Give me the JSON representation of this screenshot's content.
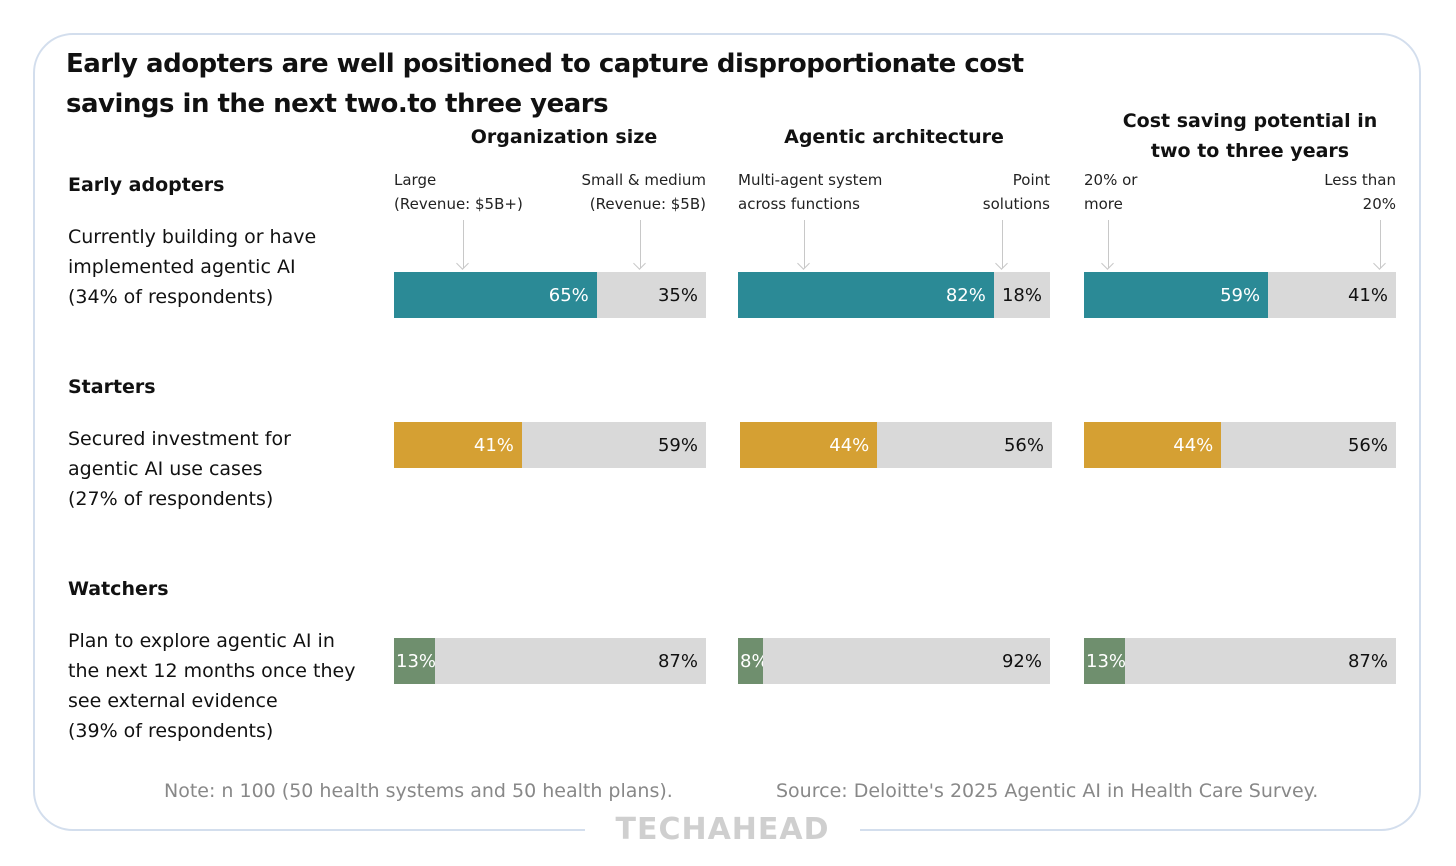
{
  "title": "Early adopters are well positioned to capture disproportionate cost savings in the next two.to three years",
  "chart_data": {
    "type": "bar",
    "orientation": "horizontal-stacked-100",
    "columns": [
      {
        "title": "Organization size",
        "left_label": "Large (Revenue: $5B+)",
        "right_label": "Small & medium (Revenue: $5B)"
      },
      {
        "title": "Agentic architecture",
        "left_label": "Multi-agent system across functions",
        "right_label": "Point solutions"
      },
      {
        "title": "Cost saving potential in two to three years",
        "left_label": "20% or more",
        "right_label": "Less than 20%"
      }
    ],
    "groups": [
      {
        "name": "Early adopters",
        "description": "Currently building or have implemented agentic AI (34% of respondents)",
        "color": "#2b8a96",
        "values": [
          [
            65,
            35
          ],
          [
            82,
            18
          ],
          [
            59,
            41
          ]
        ]
      },
      {
        "name": "Starters",
        "description": "Secured investment for agentic AI use cases (27% of respondents)",
        "color": "#d5a033",
        "values": [
          [
            41,
            59
          ],
          [
            44,
            56
          ],
          [
            44,
            56
          ]
        ]
      },
      {
        "name": "Watchers",
        "description": "Plan to explore agentic AI in the next 12 months once they see external evidence (39% of respondents)",
        "color": "#6f8f6e",
        "values": [
          [
            13,
            87
          ],
          [
            8,
            92
          ],
          [
            13,
            87
          ]
        ]
      }
    ],
    "rest_color": "#d9d9d9"
  },
  "labels": {
    "col1_left": [
      "Large",
      "(Revenue: $5B+)"
    ],
    "col1_right": [
      "Small & medium",
      "(Revenue: $5B)"
    ],
    "col2_left": [
      "Multi-agent system",
      "across functions"
    ],
    "col2_right": [
      "Point",
      "solutions"
    ],
    "col3_left": [
      "20% or",
      "more"
    ],
    "col3_right": [
      "Less than",
      "20%"
    ],
    "desc1": [
      "Currently building or have",
      "implemented agentic AI",
      "(34% of respondents)"
    ],
    "desc2": [
      "Secured investment for",
      "agentic AI use cases",
      "(27% of respondents)"
    ],
    "desc3": [
      "Plan to explore agentic AI in",
      "the next 12 months once they",
      "see external evidence",
      "(39% of respondents)"
    ],
    "col3_title": [
      "Cost saving potential in",
      "two to three years"
    ]
  },
  "footer": {
    "note": "Note: n 100 (50 health systems and 50 health plans).",
    "source": "Source: Deloitte's 2025 Agentic AI in Health Care Survey.",
    "logo": "TECHAHEAD"
  }
}
